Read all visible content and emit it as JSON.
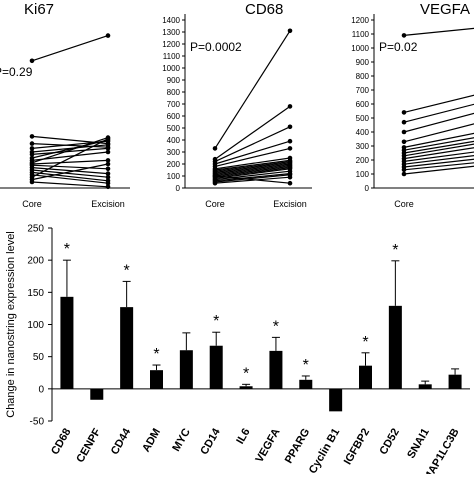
{
  "chart_data": [
    {
      "type": "line",
      "title": "Ki67",
      "pvalue": "P=0.29",
      "categories": [
        "Core",
        "Excision"
      ],
      "series": [
        {
          "values": [
            1060,
            1270
          ]
        },
        {
          "values": [
            430,
            370
          ]
        },
        {
          "values": [
            370,
            340
          ]
        },
        {
          "values": [
            330,
            390
          ]
        },
        {
          "values": [
            300,
            360
          ]
        },
        {
          "values": [
            280,
            330
          ]
        },
        {
          "values": [
            250,
            400
          ]
        },
        {
          "values": [
            230,
            300
          ]
        },
        {
          "values": [
            210,
            420
          ]
        },
        {
          "values": [
            200,
            230
          ]
        },
        {
          "values": [
            190,
            160
          ]
        },
        {
          "values": [
            170,
            120
          ]
        },
        {
          "values": [
            150,
            90
          ]
        },
        {
          "values": [
            130,
            60
          ]
        },
        {
          "values": [
            110,
            40
          ]
        },
        {
          "values": [
            90,
            410
          ]
        },
        {
          "values": [
            70,
            200
          ]
        },
        {
          "values": [
            50,
            10
          ]
        }
      ]
    },
    {
      "type": "line",
      "title": "CD68",
      "pvalue": "P=0.0002",
      "categories": [
        "Core",
        "Excision"
      ],
      "ylim": [
        0,
        1400
      ],
      "yticks": [
        "0",
        "100",
        "200",
        "300",
        "400",
        "500",
        "600",
        "700",
        "800",
        "900",
        "1000",
        "1100",
        "1200",
        "1300",
        "1400"
      ],
      "series": [
        {
          "values": [
            330,
            1310
          ]
        },
        {
          "values": [
            240,
            680
          ]
        },
        {
          "values": [
            220,
            510
          ]
        },
        {
          "values": [
            200,
            390
          ]
        },
        {
          "values": [
            180,
            330
          ]
        },
        {
          "values": [
            160,
            250
          ]
        },
        {
          "values": [
            150,
            230
          ]
        },
        {
          "values": [
            140,
            220
          ]
        },
        {
          "values": [
            130,
            210
          ]
        },
        {
          "values": [
            120,
            200
          ]
        },
        {
          "values": [
            110,
            190
          ]
        },
        {
          "values": [
            100,
            180
          ]
        },
        {
          "values": [
            90,
            170
          ]
        },
        {
          "values": [
            80,
            160
          ]
        },
        {
          "values": [
            70,
            140
          ]
        },
        {
          "values": [
            60,
            120
          ]
        },
        {
          "values": [
            50,
            110
          ]
        },
        {
          "values": [
            40,
            90
          ]
        },
        {
          "values": [
            100,
            40
          ]
        }
      ]
    },
    {
      "type": "line",
      "title": "VEGFA",
      "pvalue": "P=0.02",
      "categories": [
        "Core",
        "Excision"
      ],
      "ylim": [
        0,
        1200
      ],
      "yticks": [
        "0",
        "100",
        "200",
        "300",
        "400",
        "500",
        "600",
        "700",
        "800",
        "900",
        "1000",
        "1100",
        "1200"
      ],
      "series": [
        {
          "values": [
            1090,
            1180
          ]
        },
        {
          "values": [
            540,
            760
          ]
        },
        {
          "values": [
            470,
            700
          ]
        },
        {
          "values": [
            400,
            640
          ]
        },
        {
          "values": [
            330,
            560
          ]
        },
        {
          "values": [
            290,
            470
          ]
        },
        {
          "values": [
            270,
            430
          ]
        },
        {
          "values": [
            250,
            400
          ]
        },
        {
          "values": [
            230,
            380
          ]
        },
        {
          "values": [
            210,
            350
          ]
        },
        {
          "values": [
            190,
            310
          ]
        },
        {
          "values": [
            170,
            280
          ]
        },
        {
          "values": [
            150,
            250
          ]
        },
        {
          "values": [
            130,
            220
          ]
        },
        {
          "values": [
            100,
            200
          ]
        }
      ]
    },
    {
      "type": "bar",
      "ylabel": "Change in nanostring expression level",
      "ylim": [
        -50,
        250
      ],
      "yticks": [
        "-50",
        "0",
        "50",
        "100",
        "150",
        "200",
        "250"
      ],
      "categories": [
        "CD68",
        "CENPF",
        "CD44",
        "ADM",
        "MYC",
        "CD14",
        "IL6",
        "VEGFA",
        "PPARG",
        "Cyclin B1",
        "IGFBP2",
        "CD52",
        "SNAI1",
        "MAP1LC3B"
      ],
      "values": [
        143,
        -17,
        127,
        29,
        60,
        67,
        4,
        59,
        14,
        -35,
        36,
        129,
        7,
        22
      ],
      "errors": [
        57,
        0,
        40,
        8,
        27,
        21,
        3,
        21,
        6,
        0,
        20,
        70,
        5,
        9
      ],
      "significant": [
        true,
        false,
        true,
        true,
        false,
        true,
        true,
        true,
        true,
        false,
        true,
        true,
        false,
        false
      ],
      "marker": "*"
    }
  ]
}
